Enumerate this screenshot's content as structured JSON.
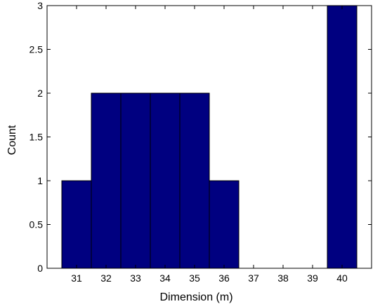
{
  "chart_data": {
    "type": "bar",
    "title": "",
    "xlabel": "Dimension (m)",
    "ylabel": "Count",
    "categories": [
      "31",
      "32",
      "33",
      "34",
      "35",
      "36",
      "37",
      "38",
      "39",
      "40"
    ],
    "x": [
      31,
      32,
      33,
      34,
      35,
      36,
      37,
      38,
      39,
      40
    ],
    "values": [
      1,
      2,
      2,
      2,
      2,
      1,
      0,
      0,
      0,
      3
    ],
    "xlim": [
      30,
      41
    ],
    "ylim": [
      0,
      3
    ],
    "y_ticks": [
      0,
      0.5,
      1,
      1.5,
      2,
      2.5,
      3
    ],
    "y_tick_labels": [
      "0",
      "0.5",
      "1",
      "1.5",
      "2",
      "2.5",
      "3"
    ],
    "x_tick_labels": [
      "31",
      "32",
      "33",
      "34",
      "35",
      "36",
      "37",
      "38",
      "39",
      "40"
    ],
    "grid": false,
    "legend": "none",
    "bar_color": "#000080",
    "bar_edge_color": "#000000",
    "axis_color": "#000000"
  }
}
